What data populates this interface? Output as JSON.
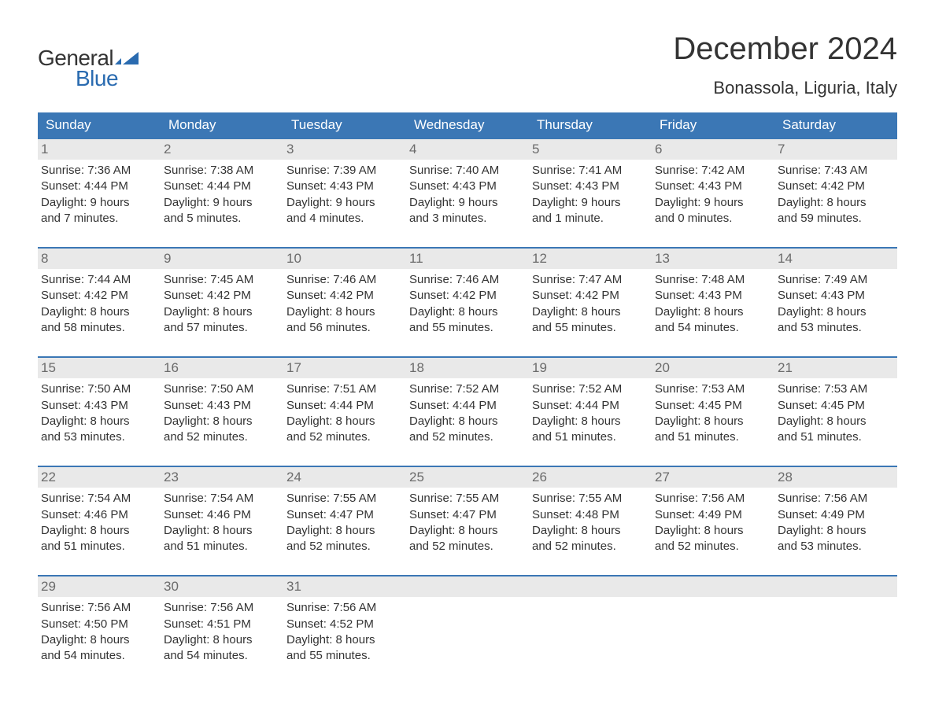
{
  "logo": {
    "text_top": "General",
    "text_bottom": "Blue",
    "top_color": "#333333",
    "bottom_color": "#2a6bb0",
    "icon_color": "#2a6bb0"
  },
  "title": "December 2024",
  "location": "Bonassola, Liguria, Italy",
  "colors": {
    "header_bg": "#3b77b5",
    "header_text": "#ffffff",
    "week_border": "#3b77b5",
    "daynum_bg": "#e9e9e9",
    "daynum_text": "#6b6b6b",
    "body_text": "#333333",
    "background": "#ffffff"
  },
  "typography": {
    "title_fontsize": 40,
    "location_fontsize": 22,
    "dayheader_fontsize": 17,
    "body_fontsize": 15,
    "font_family": "Arial"
  },
  "day_headers": [
    "Sunday",
    "Monday",
    "Tuesday",
    "Wednesday",
    "Thursday",
    "Friday",
    "Saturday"
  ],
  "weeks": [
    [
      {
        "n": "1",
        "sunrise": "Sunrise: 7:36 AM",
        "sunset": "Sunset: 4:44 PM",
        "d1": "Daylight: 9 hours",
        "d2": "and 7 minutes."
      },
      {
        "n": "2",
        "sunrise": "Sunrise: 7:38 AM",
        "sunset": "Sunset: 4:44 PM",
        "d1": "Daylight: 9 hours",
        "d2": "and 5 minutes."
      },
      {
        "n": "3",
        "sunrise": "Sunrise: 7:39 AM",
        "sunset": "Sunset: 4:43 PM",
        "d1": "Daylight: 9 hours",
        "d2": "and 4 minutes."
      },
      {
        "n": "4",
        "sunrise": "Sunrise: 7:40 AM",
        "sunset": "Sunset: 4:43 PM",
        "d1": "Daylight: 9 hours",
        "d2": "and 3 minutes."
      },
      {
        "n": "5",
        "sunrise": "Sunrise: 7:41 AM",
        "sunset": "Sunset: 4:43 PM",
        "d1": "Daylight: 9 hours",
        "d2": "and 1 minute."
      },
      {
        "n": "6",
        "sunrise": "Sunrise: 7:42 AM",
        "sunset": "Sunset: 4:43 PM",
        "d1": "Daylight: 9 hours",
        "d2": "and 0 minutes."
      },
      {
        "n": "7",
        "sunrise": "Sunrise: 7:43 AM",
        "sunset": "Sunset: 4:42 PM",
        "d1": "Daylight: 8 hours",
        "d2": "and 59 minutes."
      }
    ],
    [
      {
        "n": "8",
        "sunrise": "Sunrise: 7:44 AM",
        "sunset": "Sunset: 4:42 PM",
        "d1": "Daylight: 8 hours",
        "d2": "and 58 minutes."
      },
      {
        "n": "9",
        "sunrise": "Sunrise: 7:45 AM",
        "sunset": "Sunset: 4:42 PM",
        "d1": "Daylight: 8 hours",
        "d2": "and 57 minutes."
      },
      {
        "n": "10",
        "sunrise": "Sunrise: 7:46 AM",
        "sunset": "Sunset: 4:42 PM",
        "d1": "Daylight: 8 hours",
        "d2": "and 56 minutes."
      },
      {
        "n": "11",
        "sunrise": "Sunrise: 7:46 AM",
        "sunset": "Sunset: 4:42 PM",
        "d1": "Daylight: 8 hours",
        "d2": "and 55 minutes."
      },
      {
        "n": "12",
        "sunrise": "Sunrise: 7:47 AM",
        "sunset": "Sunset: 4:42 PM",
        "d1": "Daylight: 8 hours",
        "d2": "and 55 minutes."
      },
      {
        "n": "13",
        "sunrise": "Sunrise: 7:48 AM",
        "sunset": "Sunset: 4:43 PM",
        "d1": "Daylight: 8 hours",
        "d2": "and 54 minutes."
      },
      {
        "n": "14",
        "sunrise": "Sunrise: 7:49 AM",
        "sunset": "Sunset: 4:43 PM",
        "d1": "Daylight: 8 hours",
        "d2": "and 53 minutes."
      }
    ],
    [
      {
        "n": "15",
        "sunrise": "Sunrise: 7:50 AM",
        "sunset": "Sunset: 4:43 PM",
        "d1": "Daylight: 8 hours",
        "d2": "and 53 minutes."
      },
      {
        "n": "16",
        "sunrise": "Sunrise: 7:50 AM",
        "sunset": "Sunset: 4:43 PM",
        "d1": "Daylight: 8 hours",
        "d2": "and 52 minutes."
      },
      {
        "n": "17",
        "sunrise": "Sunrise: 7:51 AM",
        "sunset": "Sunset: 4:44 PM",
        "d1": "Daylight: 8 hours",
        "d2": "and 52 minutes."
      },
      {
        "n": "18",
        "sunrise": "Sunrise: 7:52 AM",
        "sunset": "Sunset: 4:44 PM",
        "d1": "Daylight: 8 hours",
        "d2": "and 52 minutes."
      },
      {
        "n": "19",
        "sunrise": "Sunrise: 7:52 AM",
        "sunset": "Sunset: 4:44 PM",
        "d1": "Daylight: 8 hours",
        "d2": "and 51 minutes."
      },
      {
        "n": "20",
        "sunrise": "Sunrise: 7:53 AM",
        "sunset": "Sunset: 4:45 PM",
        "d1": "Daylight: 8 hours",
        "d2": "and 51 minutes."
      },
      {
        "n": "21",
        "sunrise": "Sunrise: 7:53 AM",
        "sunset": "Sunset: 4:45 PM",
        "d1": "Daylight: 8 hours",
        "d2": "and 51 minutes."
      }
    ],
    [
      {
        "n": "22",
        "sunrise": "Sunrise: 7:54 AM",
        "sunset": "Sunset: 4:46 PM",
        "d1": "Daylight: 8 hours",
        "d2": "and 51 minutes."
      },
      {
        "n": "23",
        "sunrise": "Sunrise: 7:54 AM",
        "sunset": "Sunset: 4:46 PM",
        "d1": "Daylight: 8 hours",
        "d2": "and 51 minutes."
      },
      {
        "n": "24",
        "sunrise": "Sunrise: 7:55 AM",
        "sunset": "Sunset: 4:47 PM",
        "d1": "Daylight: 8 hours",
        "d2": "and 52 minutes."
      },
      {
        "n": "25",
        "sunrise": "Sunrise: 7:55 AM",
        "sunset": "Sunset: 4:47 PM",
        "d1": "Daylight: 8 hours",
        "d2": "and 52 minutes."
      },
      {
        "n": "26",
        "sunrise": "Sunrise: 7:55 AM",
        "sunset": "Sunset: 4:48 PM",
        "d1": "Daylight: 8 hours",
        "d2": "and 52 minutes."
      },
      {
        "n": "27",
        "sunrise": "Sunrise: 7:56 AM",
        "sunset": "Sunset: 4:49 PM",
        "d1": "Daylight: 8 hours",
        "d2": "and 52 minutes."
      },
      {
        "n": "28",
        "sunrise": "Sunrise: 7:56 AM",
        "sunset": "Sunset: 4:49 PM",
        "d1": "Daylight: 8 hours",
        "d2": "and 53 minutes."
      }
    ],
    [
      {
        "n": "29",
        "sunrise": "Sunrise: 7:56 AM",
        "sunset": "Sunset: 4:50 PM",
        "d1": "Daylight: 8 hours",
        "d2": "and 54 minutes."
      },
      {
        "n": "30",
        "sunrise": "Sunrise: 7:56 AM",
        "sunset": "Sunset: 4:51 PM",
        "d1": "Daylight: 8 hours",
        "d2": "and 54 minutes."
      },
      {
        "n": "31",
        "sunrise": "Sunrise: 7:56 AM",
        "sunset": "Sunset: 4:52 PM",
        "d1": "Daylight: 8 hours",
        "d2": "and 55 minutes."
      },
      {
        "blank": true
      },
      {
        "blank": true
      },
      {
        "blank": true
      },
      {
        "blank": true
      }
    ]
  ]
}
